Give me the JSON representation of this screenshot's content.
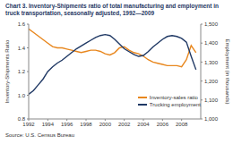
{
  "chart_data": {
    "type": "line",
    "title": "Chart 3. Inventory-Shipments ratio of total manufacturing and employment in truck transportation, seasonally adjusted, 1992—2009",
    "y_label": "Inventory-Shipments Ratio",
    "y2_label": "Employment (in thousands)",
    "source": "Source: U.S. Census Bureau",
    "legend": "lower right",
    "grid": false,
    "x": [
      1992,
      1992.5,
      1993,
      1993.5,
      1994,
      1994.5,
      1995,
      1995.5,
      1996,
      1996.5,
      1997,
      1997.5,
      1998,
      1998.5,
      1999,
      1999.5,
      2000,
      2000.5,
      2001,
      2001.5,
      2002,
      2002.5,
      2003,
      2003.5,
      2004,
      2004.5,
      2005,
      2005.5,
      2006,
      2006.5,
      2007,
      2007.5,
      2008,
      2008.5,
      2009,
      2009.5
    ],
    "xlim": [
      1992,
      2010
    ],
    "xticks": [
      1992,
      1994,
      1996,
      1998,
      2000,
      2002,
      2004,
      2006,
      2008
    ],
    "ylim": [
      0.8,
      1.6
    ],
    "yticks": [
      0.8,
      {
        "value": 1,
        "label": "1.0"
      },
      1.2,
      1.4,
      1.6
    ],
    "y2lim": [
      1000,
      1500
    ],
    "y2ticks": [
      {
        "value": 1000,
        "label": "1,000"
      },
      {
        "value": 1100,
        "label": "1,100"
      },
      {
        "value": 1200,
        "label": "1,200"
      },
      {
        "value": 1300,
        "label": "1,300"
      },
      {
        "value": 1400,
        "label": "1,400"
      },
      {
        "value": 1500,
        "label": "1,500"
      }
    ],
    "series": [
      {
        "name": "Inventory-sales ratio",
        "color": "#e8871e",
        "values": [
          1.56,
          1.53,
          1.5,
          1.47,
          1.44,
          1.41,
          1.4,
          1.4,
          1.39,
          1.38,
          1.37,
          1.36,
          1.37,
          1.38,
          1.38,
          1.37,
          1.35,
          1.34,
          1.36,
          1.4,
          1.41,
          1.38,
          1.36,
          1.35,
          1.33,
          1.3,
          1.28,
          1.27,
          1.26,
          1.25,
          1.25,
          1.25,
          1.24,
          1.3,
          1.42,
          1.36
        ]
      },
      {
        "name": "Trucking employment",
        "color": "#1f3864",
        "axis": "y2",
        "values": [
          1130,
          1150,
          1180,
          1210,
          1250,
          1275,
          1295,
          1310,
          1330,
          1350,
          1370,
          1385,
          1400,
          1415,
          1430,
          1440,
          1445,
          1440,
          1420,
          1395,
          1370,
          1355,
          1340,
          1330,
          1335,
          1355,
          1380,
          1400,
          1420,
          1435,
          1440,
          1435,
          1425,
          1405,
          1330,
          1260
        ]
      }
    ]
  }
}
